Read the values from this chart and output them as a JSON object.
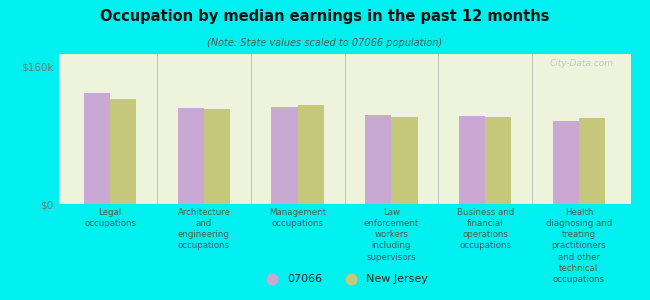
{
  "title": "Occupation by median earnings in the past 12 months",
  "subtitle": "(Note: State values scaled to 07066 population)",
  "background_color": "#00EFEF",
  "plot_bg_color": "#eef3dc",
  "categories": [
    "Legal\noccupations",
    "Architecture\nand\nengineering\noccupations",
    "Management\noccupations",
    "Law\nenforcement\nworkers\nincluding\nsupervisors",
    "Business and\nfinancial\noperations\noccupations",
    "Health\ndiagnosing and\ntreating\npractitioners\nand other\ntechnical\noccupations"
  ],
  "values_07066": [
    130000,
    112000,
    113000,
    104000,
    103000,
    97000
  ],
  "values_nj": [
    122000,
    111000,
    115000,
    102000,
    101000,
    100000
  ],
  "color_07066": "#c9a8d4",
  "color_nj": "#c5c87a",
  "ylim": [
    0,
    175000
  ],
  "yticks": [
    0,
    160000
  ],
  "ytick_labels": [
    "$0",
    "$160k"
  ],
  "legend_07066": "07066",
  "legend_nj": "New Jersey",
  "bar_width": 0.28,
  "watermark": "City-Data.com",
  "separator_color": "#bbbbbb",
  "tick_color": "#777777",
  "title_color": "#111111",
  "subtitle_color": "#555555",
  "label_color": "#555555"
}
